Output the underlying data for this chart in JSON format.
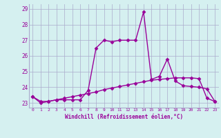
{
  "xlabel": "Windchill (Refroidissement éolien,°C)",
  "x": [
    0,
    1,
    2,
    3,
    4,
    5,
    6,
    7,
    8,
    9,
    10,
    11,
    12,
    13,
    14,
    15,
    16,
    17,
    18,
    19,
    20,
    21,
    22,
    23
  ],
  "windchill": [
    23.4,
    23.0,
    23.1,
    23.2,
    23.2,
    23.2,
    23.2,
    23.8,
    26.5,
    27.0,
    26.9,
    27.0,
    27.0,
    27.0,
    28.8,
    24.5,
    24.7,
    25.8,
    24.4,
    24.1,
    24.05,
    24.0,
    23.9,
    23.1
  ],
  "temp": [
    23.4,
    23.1,
    23.1,
    23.2,
    23.3,
    23.4,
    23.5,
    23.6,
    23.7,
    23.85,
    23.95,
    24.05,
    24.15,
    24.25,
    24.35,
    24.45,
    24.5,
    24.55,
    24.6,
    24.6,
    24.6,
    24.55,
    23.3,
    23.1
  ],
  "line_color": "#990099",
  "bg_color": "#d5f0f0",
  "grid_color": "#aaaacc",
  "ylim_min": 22.7,
  "ylim_max": 29.3,
  "yticks": [
    23,
    24,
    25,
    26,
    27,
    28,
    29
  ],
  "xticks": [
    0,
    1,
    2,
    3,
    4,
    5,
    6,
    7,
    8,
    9,
    10,
    11,
    12,
    13,
    14,
    15,
    16,
    17,
    18,
    19,
    20,
    21,
    22,
    23
  ],
  "marker": "D",
  "markersize": 2.5,
  "linewidth": 1.0
}
